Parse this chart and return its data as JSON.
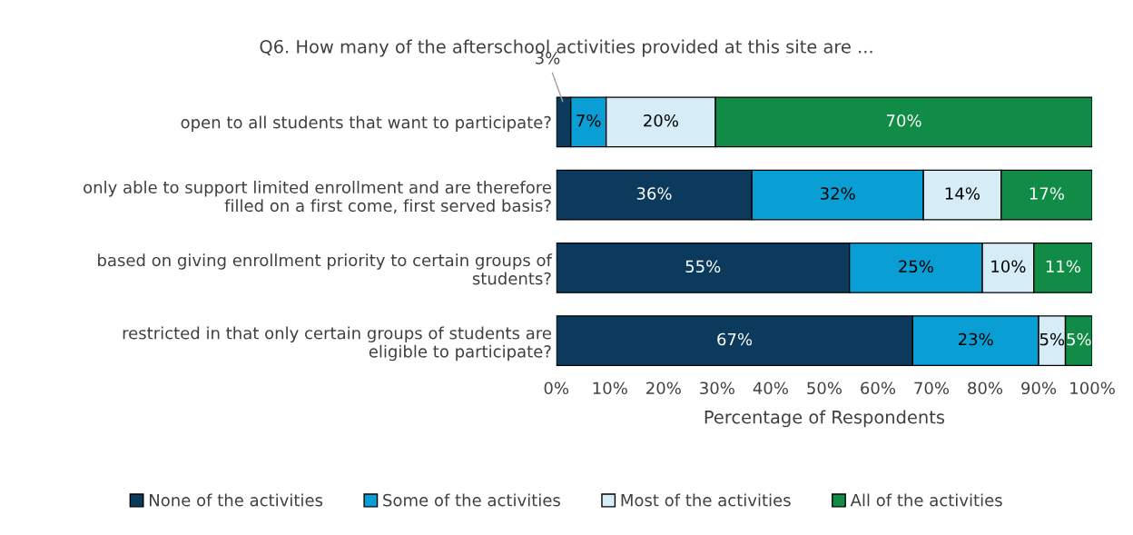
{
  "chart_data": {
    "type": "bar",
    "orientation": "horizontal",
    "stacked": true,
    "title": "Q6. How many of the afterschool activities provided at this site are ...",
    "xlabel": "Percentage of Respondents",
    "categories": [
      "open to all students that want to participate?",
      "only able to support limited enrollment and are therefore\nfilled on a first come, first served basis?",
      "based on giving enrollment priority to certain groups of\nstudents?",
      "restricted in that only certain groups of students are\neligible to participate?"
    ],
    "series": [
      {
        "name": "None of the activities",
        "color": "#0b3a5c",
        "values": [
          2.7,
          36.5,
          54.7,
          66.5
        ],
        "value_labels": [
          "3%",
          "36%",
          "55%",
          "67%"
        ]
      },
      {
        "name": "Some of the activities",
        "color": "#0a9fd4",
        "values": [
          6.6,
          32,
          24.8,
          23.5
        ],
        "value_labels": [
          "7%",
          "32%",
          "25%",
          "23%"
        ]
      },
      {
        "name": "Most of the activities",
        "color": "#d6ecf7",
        "values": [
          20.4,
          14.5,
          9.6,
          5
        ],
        "value_labels": [
          "20%",
          "14%",
          "10%",
          "5%"
        ]
      },
      {
        "name": "All of the activities",
        "color": "#118c46",
        "values": [
          70.3,
          17,
          10.9,
          5
        ],
        "value_labels": [
          "70%",
          "17%",
          "11%",
          "5%"
        ]
      }
    ],
    "xlim": [
      0,
      100
    ],
    "xticks": [
      {
        "value": 0,
        "label": "0%"
      },
      {
        "value": 10,
        "label": "10%"
      },
      {
        "value": 20,
        "label": "20%"
      },
      {
        "value": 30,
        "label": "30%"
      },
      {
        "value": 40,
        "label": "40%"
      },
      {
        "value": 50,
        "label": "50%"
      },
      {
        "value": 60,
        "label": "60%"
      },
      {
        "value": 70,
        "label": "70%"
      },
      {
        "value": 80,
        "label": "80%"
      },
      {
        "value": 90,
        "label": "90%"
      },
      {
        "value": 100,
        "label": "100%"
      }
    ],
    "grid": false,
    "legend": "bottom"
  }
}
